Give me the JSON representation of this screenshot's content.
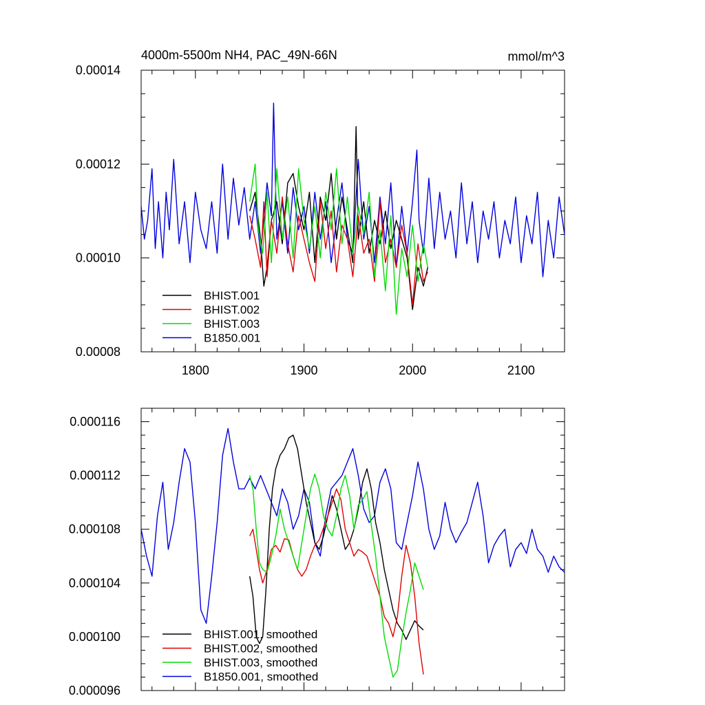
{
  "colors": {
    "BHIST.001": "#000000",
    "BHIST.002": "#e00000",
    "BHIST.003": "#00dd00",
    "B1850.001": "#0000dd"
  },
  "chart_data": [
    {
      "type": "line",
      "title": "4000m-5500m NH4, PAC_49N-66N",
      "units": "mmol/m^3",
      "xlim": [
        1750,
        2140
      ],
      "ylim": [
        8e-05,
        0.00014
      ],
      "x_ticks": [
        1800,
        1900,
        2000,
        2100
      ],
      "x_tick_labels": [
        "1800",
        "1900",
        "2000",
        "2100"
      ],
      "y_ticks": [
        8e-05,
        0.0001,
        0.00012,
        0.00014
      ],
      "y_tick_labels": [
        "0.00008",
        "0.00010",
        "0.00012",
        "0.00014"
      ],
      "legend": [
        "BHIST.001",
        "BHIST.002",
        "BHIST.003",
        "B1850.001"
      ],
      "legend_position": "bottom-left",
      "series": [
        {
          "name": "BHIST.001",
          "x": [
            1850,
            1855,
            1860,
            1863,
            1866,
            1870,
            1875,
            1880,
            1885,
            1890,
            1895,
            1900,
            1905,
            1910,
            1915,
            1920,
            1925,
            1930,
            1935,
            1940,
            1945,
            1948,
            1950,
            1955,
            1960,
            1965,
            1970,
            1975,
            1980,
            1985,
            1990,
            1995,
            2000,
            2005,
            2010,
            2014
          ],
          "y": [
            0.00011,
            0.000114,
            0.000104,
            9.4e-05,
            9.8e-05,
            0.000108,
            0.000112,
            0.000103,
            0.000116,
            0.000118,
            0.000111,
            0.000106,
            0.000114,
            9.9e-05,
            0.000113,
            0.000108,
            0.000118,
            0.000104,
            0.000113,
            0.000106,
            9.9e-05,
            0.000128,
            0.000104,
            0.000112,
            0.000101,
            0.000108,
            0.000103,
            0.00011,
            0.000102,
            0.000108,
            0.000104,
            0.0001,
            8.9e-05,
            9.8e-05,
            9.4e-05,
            9.8e-05
          ]
        },
        {
          "name": "BHIST.002",
          "x": [
            1850,
            1855,
            1860,
            1863,
            1866,
            1870,
            1875,
            1880,
            1885,
            1890,
            1895,
            1900,
            1905,
            1910,
            1915,
            1920,
            1925,
            1930,
            1935,
            1940,
            1945,
            1950,
            1955,
            1960,
            1965,
            1970,
            1975,
            1980,
            1985,
            1990,
            1995,
            2000,
            2005,
            2010,
            2014
          ],
          "y": [
            0.000109,
            0.000104,
            9.8e-05,
            0.000112,
            9.6e-05,
            0.000108,
            0.000101,
            0.000113,
            0.000103,
            9.7e-05,
            0.000109,
            0.000104,
            9.9e-05,
            9.5e-05,
            0.000112,
            0.000102,
            0.00011,
            9.7e-05,
            0.000107,
            0.000104,
            9.6e-05,
            0.000109,
            0.000101,
            0.000104,
            9.5e-05,
            0.000112,
            9.9e-05,
            0.000104,
            9.8e-05,
            0.000107,
            0.000101,
            9e-05,
            0.000103,
            9.5e-05,
            9.7e-05
          ]
        },
        {
          "name": "BHIST.003",
          "x": [
            1850,
            1855,
            1858,
            1862,
            1866,
            1870,
            1875,
            1880,
            1885,
            1890,
            1895,
            1900,
            1905,
            1910,
            1915,
            1920,
            1925,
            1930,
            1935,
            1940,
            1945,
            1950,
            1955,
            1960,
            1965,
            1970,
            1975,
            1980,
            1985,
            1990,
            1995,
            2000,
            2005,
            2010,
            2014
          ],
          "y": [
            0.000112,
            0.00012,
            0.000106,
            0.000101,
            0.000114,
            9.9e-05,
            0.000119,
            0.000104,
            0.000113,
            0.0001,
            0.000119,
            0.000108,
            0.000102,
            0.000111,
            0.0001,
            0.000114,
            0.000106,
            0.000119,
            0.000103,
            0.000113,
            0.000101,
            0.000111,
            0.000105,
            0.000114,
            9.6e-05,
            0.000106,
            9.3e-05,
            0.000109,
            8.8e-05,
            0.000102,
            9.6e-05,
            0.000107,
            9.5e-05,
            0.000103,
            9.8e-05
          ]
        },
        {
          "name": "B1850.001",
          "x": [
            1750,
            1753,
            1756,
            1760,
            1763,
            1766,
            1770,
            1773,
            1776,
            1780,
            1785,
            1790,
            1795,
            1800,
            1805,
            1810,
            1815,
            1820,
            1825,
            1830,
            1835,
            1840,
            1845,
            1850,
            1855,
            1860,
            1863,
            1866,
            1870,
            1872,
            1875,
            1880,
            1885,
            1890,
            1895,
            1900,
            1905,
            1910,
            1915,
            1920,
            1925,
            1930,
            1935,
            1940,
            1945,
            1950,
            1955,
            1960,
            1965,
            1970,
            1975,
            1980,
            1985,
            1990,
            1995,
            2000,
            2004,
            2006,
            2010,
            2015,
            2020,
            2025,
            2030,
            2035,
            2040,
            2045,
            2050,
            2055,
            2060,
            2065,
            2070,
            2075,
            2080,
            2085,
            2090,
            2095,
            2100,
            2105,
            2110,
            2115,
            2120,
            2125,
            2130,
            2135,
            2140
          ],
          "y": [
            0.000111,
            0.000104,
            0.000108,
            0.000119,
            0.000102,
            0.000112,
            0.0001,
            0.000114,
            0.000106,
            0.000121,
            0.000103,
            0.000112,
            9.9e-05,
            0.000114,
            0.000106,
            0.000102,
            0.000112,
            0.000101,
            0.00012,
            0.000104,
            0.000117,
            0.000107,
            0.000115,
            0.000104,
            0.000112,
            0.000101,
            0.000108,
            0.000116,
            0.000109,
            0.000133,
            0.000104,
            0.000112,
            0.000101,
            0.000115,
            0.000106,
            0.000111,
            0.000101,
            0.000114,
            0.000104,
            0.000112,
            9.9e-05,
            0.000108,
            0.000116,
            0.000104,
            0.000101,
            0.000121,
            0.000104,
            0.000111,
            9.9e-05,
            0.000113,
            0.000103,
            0.000116,
            9.8e-05,
            0.000111,
            0.000101,
            0.000112,
            0.000123,
            0.000108,
            0.000101,
            0.000117,
            0.000102,
            0.000114,
            0.000104,
            0.00011,
            0.0001,
            0.000116,
            0.000103,
            0.000112,
            9.9e-05,
            0.00011,
            0.000104,
            0.000112,
            0.0001,
            0.000108,
            0.000103,
            0.000113,
            9.9e-05,
            0.000109,
            0.000103,
            0.000114,
            9.6e-05,
            0.000108,
            0.0001,
            0.000113,
            0.000105
          ]
        }
      ]
    },
    {
      "type": "line",
      "xlim": [
        1750,
        2140
      ],
      "ylim": [
        9.6e-05,
        0.000117
      ],
      "x_ticks": [
        1800,
        1900,
        2000,
        2100
      ],
      "y_ticks": [
        9.6e-05,
        0.0001,
        0.000104,
        0.000108,
        0.000112,
        0.000116
      ],
      "y_tick_labels": [
        "0.000096",
        "0.000100",
        "0.000104",
        "0.000108",
        "0.000112",
        "0.000116"
      ],
      "legend": [
        "BHIST.001, smoothed",
        "BHIST.002, smoothed",
        "BHIST.003, smoothed",
        "B1850.001, smoothed"
      ],
      "legend_position": "bottom-left",
      "series": [
        {
          "name": "BHIST.001, smoothed",
          "x": [
            1850,
            1853,
            1856,
            1859,
            1862,
            1865,
            1868,
            1871,
            1874,
            1878,
            1882,
            1886,
            1890,
            1894,
            1898,
            1902,
            1906,
            1910,
            1914,
            1918,
            1922,
            1926,
            1930,
            1934,
            1938,
            1942,
            1946,
            1950,
            1954,
            1958,
            1962,
            1966,
            1970,
            1974,
            1978,
            1982,
            1986,
            1990,
            1994,
            1998,
            2002,
            2006,
            2010
          ],
          "y": [
            0.0001045,
            0.000103,
            0.0001,
            9.95e-05,
            0.0001,
            0.0001035,
            0.000108,
            0.000111,
            0.0001125,
            0.0001135,
            0.000114,
            0.0001148,
            0.000115,
            0.000114,
            0.000112,
            0.00011,
            0.0001085,
            0.000107,
            0.0001065,
            0.0001075,
            0.000109,
            0.0001105,
            0.0001095,
            0.000108,
            0.0001065,
            0.000107,
            0.000108,
            0.0001095,
            0.0001115,
            0.0001125,
            0.000111,
            0.0001085,
            0.000107,
            0.000105,
            0.0001035,
            0.000102,
            0.000101,
            0.0001005,
            9.98e-05,
            0.0001005,
            0.0001012,
            0.0001008,
            0.0001005
          ]
        },
        {
          "name": "BHIST.002, smoothed",
          "x": [
            1850,
            1853,
            1856,
            1859,
            1862,
            1866,
            1870,
            1874,
            1878,
            1882,
            1886,
            1890,
            1894,
            1898,
            1902,
            1906,
            1910,
            1914,
            1918,
            1922,
            1926,
            1930,
            1934,
            1938,
            1942,
            1946,
            1950,
            1954,
            1958,
            1962,
            1966,
            1970,
            1974,
            1978,
            1982,
            1986,
            1990,
            1994,
            1998,
            2002,
            2006,
            2010
          ],
          "y": [
            0.0001075,
            0.000108,
            0.0001065,
            0.000105,
            0.000104,
            0.000105,
            0.0001065,
            0.0001068,
            0.0001063,
            0.0001073,
            0.0001072,
            0.000106,
            0.000105,
            0.0001045,
            0.000105,
            0.000106,
            0.0001068,
            0.0001072,
            0.0001081,
            0.000109,
            0.00011,
            0.000111,
            0.0001102,
            0.000108,
            0.000107,
            0.000106,
            0.0001065,
            0.0001063,
            0.000106,
            0.000105,
            0.000104,
            0.000103,
            0.0001015,
            0.000101,
            0.0001,
            0.0001015,
            0.0001045,
            0.0001068,
            0.0001055,
            0.000103,
            9.95e-05,
            9.72e-05
          ]
        },
        {
          "name": "BHIST.003, smoothed",
          "x": [
            1850,
            1853,
            1856,
            1859,
            1862,
            1866,
            1870,
            1874,
            1878,
            1882,
            1886,
            1890,
            1894,
            1898,
            1902,
            1906,
            1910,
            1914,
            1918,
            1922,
            1926,
            1930,
            1934,
            1938,
            1942,
            1946,
            1950,
            1954,
            1958,
            1962,
            1966,
            1970,
            1974,
            1978,
            1982,
            1986,
            1990,
            1994,
            1998,
            2002,
            2006,
            2010
          ],
          "y": [
            0.000112,
            0.000111,
            0.000108,
            0.0001055,
            0.000105,
            0.0001048,
            0.000106,
            0.0001075,
            0.0001095,
            0.000108,
            0.000107,
            0.000106,
            0.000105,
            0.000107,
            0.000109,
            0.000111,
            0.0001121,
            0.000111,
            0.000109,
            0.000108,
            0.0001075,
            0.000109,
            0.000111,
            0.000112,
            0.0001105,
            0.000108,
            0.0001098,
            0.0001102,
            0.0001108,
            0.0001083,
            0.000106,
            0.000103,
            0.0001,
            9.85e-05,
            9.7e-05,
            9.75e-05,
            9.98e-05,
            0.0001018,
            0.0001035,
            0.0001055,
            0.0001045,
            0.0001035
          ]
        },
        {
          "name": "B1850.001, smoothed",
          "x": [
            1750,
            1755,
            1760,
            1765,
            1770,
            1775,
            1780,
            1785,
            1790,
            1795,
            1800,
            1805,
            1810,
            1815,
            1820,
            1825,
            1830,
            1835,
            1840,
            1845,
            1850,
            1855,
            1860,
            1865,
            1870,
            1875,
            1880,
            1885,
            1890,
            1895,
            1900,
            1905,
            1910,
            1915,
            1920,
            1925,
            1930,
            1935,
            1940,
            1945,
            1950,
            1955,
            1960,
            1965,
            1970,
            1975,
            1980,
            1985,
            1990,
            1995,
            2000,
            2005,
            2010,
            2015,
            2020,
            2025,
            2030,
            2035,
            2040,
            2045,
            2050,
            2055,
            2060,
            2065,
            2070,
            2075,
            2080,
            2085,
            2090,
            2095,
            2100,
            2105,
            2110,
            2115,
            2120,
            2125,
            2130,
            2135,
            2140
          ],
          "y": [
            0.000108,
            0.000106,
            0.0001045,
            0.000109,
            0.0001115,
            0.0001065,
            0.0001085,
            0.0001115,
            0.000114,
            0.000113,
            0.0001085,
            0.000102,
            0.000101,
            0.0001045,
            0.0001085,
            0.0001135,
            0.0001155,
            0.000113,
            0.000111,
            0.000111,
            0.0001118,
            0.000111,
            0.000112,
            0.000111,
            0.00011,
            0.000109,
            0.000111,
            0.00011,
            0.000108,
            0.000109,
            0.000111,
            0.00011,
            0.000107,
            0.000106,
            0.000109,
            0.000111,
            0.0001115,
            0.000112,
            0.000113,
            0.000114,
            0.000112,
            0.0001095,
            0.0001085,
            0.000109,
            0.0001115,
            0.0001125,
            0.000111,
            0.000107,
            0.0001065,
            0.0001085,
            0.0001105,
            0.000113,
            0.000111,
            0.000108,
            0.0001065,
            0.0001075,
            0.00011,
            0.000108,
            0.000107,
            0.0001078,
            0.0001085,
            0.00011,
            0.0001115,
            0.000109,
            0.0001055,
            0.0001068,
            0.0001075,
            0.000108,
            0.0001052,
            0.0001065,
            0.000107,
            0.0001062,
            0.000108,
            0.0001065,
            0.000106,
            0.0001048,
            0.000106,
            0.0001052,
            0.0001048
          ]
        }
      ]
    }
  ]
}
